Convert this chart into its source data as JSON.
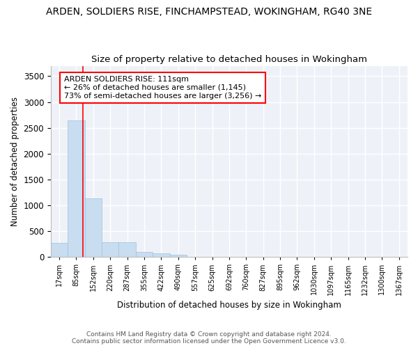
{
  "title": "ARDEN, SOLDIERS RISE, FINCHAMPSTEAD, WOKINGHAM, RG40 3NE",
  "subtitle": "Size of property relative to detached houses in Wokingham",
  "xlabel": "Distribution of detached houses by size in Wokingham",
  "ylabel": "Number of detached properties",
  "bar_color": "#c9ddf0",
  "bar_edge_color": "#a0c0de",
  "bar_categories": [
    "17sqm",
    "85sqm",
    "152sqm",
    "220sqm",
    "287sqm",
    "355sqm",
    "422sqm",
    "490sqm",
    "557sqm",
    "625sqm",
    "692sqm",
    "760sqm",
    "827sqm",
    "895sqm",
    "962sqm",
    "1030sqm",
    "1097sqm",
    "1165sqm",
    "1232sqm",
    "1300sqm",
    "1367sqm"
  ],
  "bar_values": [
    275,
    2640,
    1140,
    280,
    280,
    95,
    70,
    45,
    0,
    0,
    0,
    0,
    0,
    0,
    0,
    0,
    0,
    0,
    0,
    0,
    0
  ],
  "red_line_x": 1.38,
  "annotation_line1": "ARDEN SOLDIERS RISE: 111sqm",
  "annotation_line2": "← 26% of detached houses are smaller (1,145)",
  "annotation_line3": "73% of semi-detached houses are larger (3,256) →",
  "ylim": [
    0,
    3700
  ],
  "yticks": [
    0,
    500,
    1000,
    1500,
    2000,
    2500,
    3000,
    3500
  ],
  "footer_line1": "Contains HM Land Registry data © Crown copyright and database right 2024.",
  "footer_line2": "Contains public sector information licensed under the Open Government Licence v3.0.",
  "background_color": "#eef2f8",
  "grid_color": "#ffffff",
  "title_fontsize": 10,
  "subtitle_fontsize": 9.5,
  "axis_fontsize": 8.5,
  "annotation_fontsize": 8,
  "footer_fontsize": 6.5
}
